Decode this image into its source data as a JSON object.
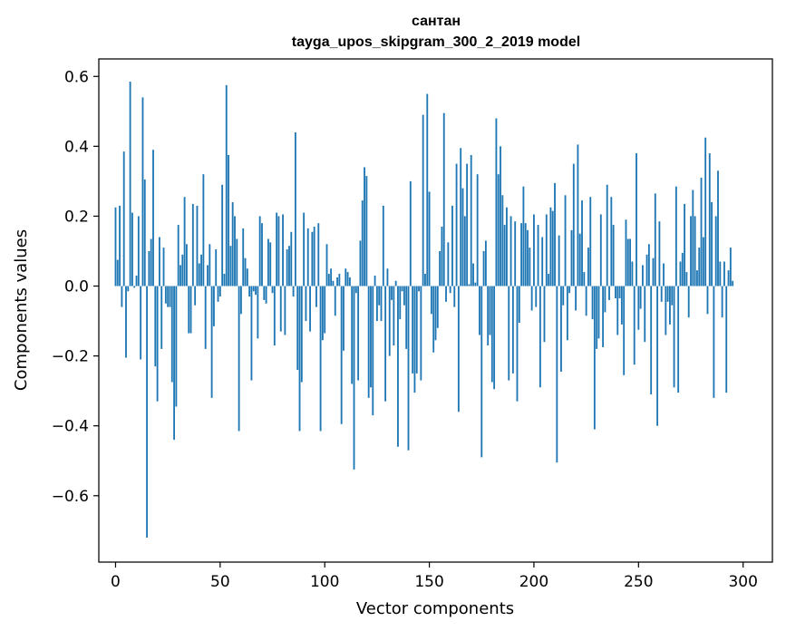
{
  "chart_data": {
    "type": "bar",
    "title": "сантан",
    "subtitle": "tayga_upos_skipgram_300_2_2019 model",
    "xlabel": "Vector components",
    "ylabel": "Components values",
    "xlim": [
      -8,
      314
    ],
    "ylim": [
      -0.79,
      0.65
    ],
    "xticks": [
      0,
      50,
      100,
      150,
      200,
      250,
      300
    ],
    "yticks": [
      -0.6,
      -0.4,
      -0.2,
      0.0,
      0.2,
      0.4,
      0.6
    ],
    "xtick_labels": [
      "0",
      "50",
      "100",
      "150",
      "200",
      "250",
      "300"
    ],
    "ytick_labels": [
      "−0.6",
      "−0.4",
      "−0.2",
      "0.0",
      "0.2",
      "0.4",
      "0.6"
    ],
    "bar_color": "#1f77b4",
    "grid": false,
    "values": [
      0.225,
      0.075,
      0.23,
      -0.06,
      0.385,
      -0.205,
      -0.015,
      0.585,
      0.21,
      -0.005,
      0.03,
      0.2,
      -0.21,
      0.54,
      0.305,
      -0.72,
      0.1,
      0.135,
      0.39,
      -0.23,
      -0.33,
      0.14,
      -0.18,
      0.11,
      -0.05,
      -0.06,
      -0.06,
      -0.275,
      -0.44,
      -0.345,
      0.175,
      0.06,
      0.09,
      0.255,
      0.12,
      -0.135,
      -0.135,
      0.235,
      -0.055,
      0.23,
      0.065,
      0.09,
      0.32,
      -0.18,
      0.06,
      0.12,
      -0.32,
      -0.115,
      0.105,
      -0.045,
      -0.03,
      0.29,
      0.035,
      0.575,
      0.375,
      0.115,
      0.24,
      0.2,
      0.135,
      -0.415,
      -0.08,
      0.165,
      0.08,
      0.05,
      -0.03,
      -0.27,
      -0.015,
      -0.025,
      -0.15,
      0.2,
      0.18,
      -0.04,
      -0.05,
      0.135,
      0.125,
      -0.02,
      -0.17,
      0.21,
      0.2,
      -0.13,
      0.205,
      -0.14,
      0.105,
      0.115,
      0.155,
      -0.03,
      0.44,
      -0.24,
      -0.415,
      -0.275,
      0.21,
      -0.1,
      0.165,
      -0.13,
      0.155,
      0.17,
      -0.06,
      0.18,
      -0.415,
      -0.155,
      -0.135,
      0.12,
      0.035,
      0.05,
      0.015,
      -0.085,
      0.025,
      0.035,
      -0.395,
      -0.185,
      0.05,
      0.04,
      0.025,
      -0.28,
      -0.525,
      -0.02,
      -0.27,
      0.13,
      0.245,
      0.34,
      0.315,
      -0.32,
      -0.29,
      -0.37,
      0.03,
      -0.1,
      -0.055,
      -0.1,
      0.23,
      -0.33,
      0.05,
      -0.2,
      -0.04,
      -0.17,
      0.015,
      -0.46,
      -0.095,
      -0.015,
      -0.055,
      -0.18,
      -0.47,
      0.3,
      -0.25,
      -0.305,
      -0.25,
      -0.015,
      -0.27,
      0.49,
      0.035,
      0.55,
      0.27,
      -0.08,
      -0.19,
      -0.155,
      -0.12,
      0.1,
      0.17,
      0.495,
      -0.045,
      0.125,
      -0.02,
      0.23,
      -0.06,
      0.35,
      -0.36,
      0.395,
      0.28,
      0.2,
      0.35,
      0.005,
      0.375,
      0.065,
      0.01,
      0.32,
      -0.14,
      -0.49,
      0.1,
      0.13,
      -0.17,
      -0.14,
      -0.275,
      -0.295,
      0.48,
      0.32,
      0.4,
      0.26,
      0.175,
      0.225,
      -0.27,
      0.2,
      -0.25,
      0.185,
      -0.33,
      -0.105,
      0.18,
      0.285,
      0.18,
      0.16,
      0.11,
      -0.07,
      0.205,
      -0.06,
      0.175,
      -0.29,
      0.14,
      -0.16,
      0.205,
      0.035,
      0.225,
      0.215,
      0.295,
      -0.505,
      0.145,
      -0.245,
      -0.055,
      0.26,
      -0.155,
      -0.02,
      0.16,
      0.35,
      -0.07,
      0.405,
      0.15,
      0.245,
      0.04,
      -0.085,
      0.11,
      0.255,
      -0.095,
      -0.41,
      -0.18,
      -0.15,
      0.205,
      -0.175,
      -0.075,
      0.29,
      -0.04,
      0.255,
      0.175,
      -0.035,
      -0.14,
      -0.035,
      -0.11,
      -0.255,
      0.19,
      0.135,
      0.135,
      0.07,
      -0.225,
      0.38,
      -0.125,
      -0.065,
      0.06,
      -0.16,
      0.09,
      0.12,
      -0.31,
      0.08,
      0.265,
      -0.4,
      0.185,
      -0.045,
      0.065,
      -0.14,
      -0.045,
      -0.11,
      -0.055,
      -0.29,
      0.285,
      -0.305,
      0.07,
      0.095,
      0.235,
      0.04,
      -0.09,
      0.2,
      0.275,
      0.2,
      0.045,
      0.11,
      0.31,
      0.14,
      0.425,
      -0.08,
      0.38,
      0.24,
      -0.32,
      0.2,
      0.33,
      0.07,
      -0.09,
      0.07,
      -0.305,
      0.045,
      0.11,
      0.015
    ]
  }
}
